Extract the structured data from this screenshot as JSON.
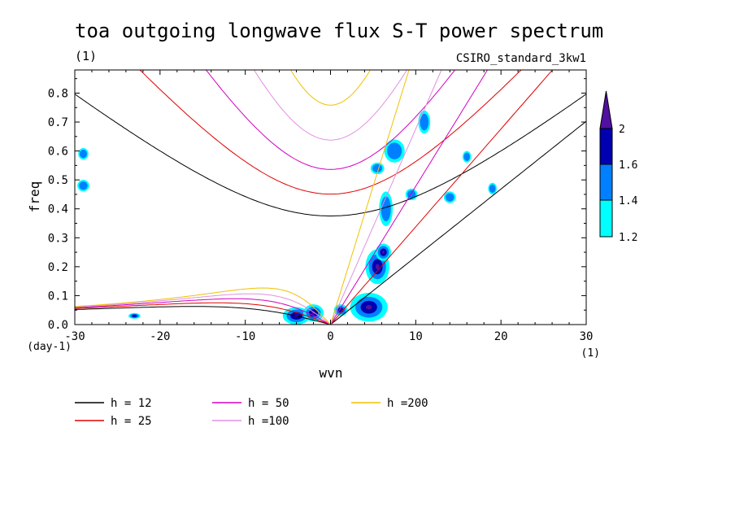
{
  "chart_data": {
    "type": "heatmap",
    "title": "toa outgoing longwave flux S-T power spectrum",
    "subtitle_left": "(1)",
    "subtitle_right": "CSIRO_standard_3kw1",
    "xlabel": "wvn",
    "ylabel": "freq",
    "x_unit": "(1)",
    "y_unit": "(day-1)",
    "xlim": [
      -30,
      30
    ],
    "ylim": [
      0,
      0.88
    ],
    "x_ticks": [
      -30,
      -20,
      -10,
      0,
      10,
      20,
      30
    ],
    "x_tick_labels": [
      "-30",
      "-20",
      "-10",
      "0",
      "10",
      "20",
      "30"
    ],
    "y_ticks": [
      0,
      0.1,
      0.2,
      0.3,
      0.4,
      0.5,
      0.6,
      0.7,
      0.8
    ],
    "y_tick_labels": [
      "0.0",
      "0.1",
      "0.2",
      "0.3",
      "0.4",
      "0.5",
      "0.6",
      "0.7",
      "0.8"
    ],
    "colorbar": {
      "levels": [
        1.2,
        1.4,
        1.6,
        2
      ],
      "labels": [
        "1.2",
        "1.4",
        "1.6",
        "2"
      ],
      "colors": [
        "#00ffff",
        "#0080ff",
        "#0000b0",
        "#5010a0"
      ]
    },
    "dispersion_curves": [
      {
        "name": "h = 12",
        "h": 12,
        "color": "#000000"
      },
      {
        "name": "h = 25",
        "h": 25,
        "color": "#e00000"
      },
      {
        "name": "h = 50",
        "h": 50,
        "color": "#d000c0"
      },
      {
        "name": "h =100",
        "h": 100,
        "color": "#e090e0"
      },
      {
        "name": "h =200",
        "h": 200,
        "color": "#f0c000"
      }
    ],
    "blobs": [
      {
        "x": -4,
        "y": 0.03,
        "rx": 1.6,
        "ry": 0.03,
        "level": 3
      },
      {
        "x": -2,
        "y": 0.04,
        "rx": 1.2,
        "ry": 0.03,
        "level": 3
      },
      {
        "x": 1.2,
        "y": 0.05,
        "rx": 0.8,
        "ry": 0.02,
        "level": 2
      },
      {
        "x": 4.5,
        "y": 0.06,
        "rx": 2.2,
        "ry": 0.05,
        "level": 3
      },
      {
        "x": 5.5,
        "y": 0.2,
        "rx": 1.4,
        "ry": 0.06,
        "level": 3
      },
      {
        "x": 6.2,
        "y": 0.25,
        "rx": 0.9,
        "ry": 0.03,
        "level": 3
      },
      {
        "x": 6.5,
        "y": 0.4,
        "rx": 0.8,
        "ry": 0.06,
        "level": 1
      },
      {
        "x": 7.5,
        "y": 0.6,
        "rx": 1.2,
        "ry": 0.04,
        "level": 1
      },
      {
        "x": 9.5,
        "y": 0.45,
        "rx": 0.7,
        "ry": 0.02,
        "level": 1
      },
      {
        "x": 11,
        "y": 0.7,
        "rx": 0.7,
        "ry": 0.04,
        "level": 1
      },
      {
        "x": 5.5,
        "y": 0.54,
        "rx": 0.8,
        "ry": 0.02,
        "level": 1
      },
      {
        "x": -29,
        "y": 0.48,
        "rx": 0.7,
        "ry": 0.02,
        "level": 1
      },
      {
        "x": -29,
        "y": 0.59,
        "rx": 0.6,
        "ry": 0.02,
        "level": 1
      },
      {
        "x": -23,
        "y": 0.03,
        "rx": 0.7,
        "ry": 0.01,
        "level": 2
      },
      {
        "x": 14,
        "y": 0.44,
        "rx": 0.7,
        "ry": 0.02,
        "level": 1
      },
      {
        "x": 16,
        "y": 0.58,
        "rx": 0.5,
        "ry": 0.02,
        "level": 1
      },
      {
        "x": 19,
        "y": 0.47,
        "rx": 0.5,
        "ry": 0.02,
        "level": 1
      }
    ]
  }
}
